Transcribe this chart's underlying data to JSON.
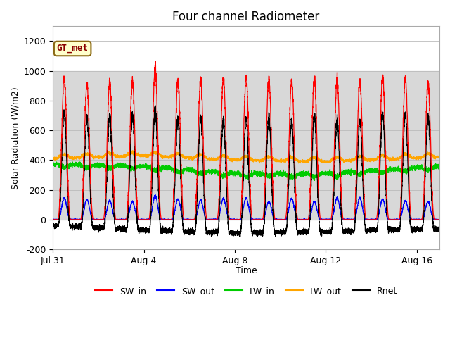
{
  "title": "Four channel Radiometer",
  "xlabel": "Time",
  "ylabel": "Solar Radiation (W/m2)",
  "ylim": [
    -200,
    1300
  ],
  "yticks": [
    -200,
    0,
    200,
    400,
    600,
    800,
    1000,
    1200
  ],
  "xtick_labels": [
    "Jul 31",
    "Aug 4",
    "Aug 8",
    "Aug 12",
    "Aug 16"
  ],
  "xtick_positions": [
    0,
    4,
    8,
    12,
    16
  ],
  "bg_gray_ylim": [
    0,
    1000
  ],
  "annotation_text": "GT_met",
  "colors": {
    "SW_in": "#ff0000",
    "SW_out": "#0000ff",
    "LW_in": "#00cc00",
    "LW_out": "#ffa500",
    "Rnet": "#000000"
  },
  "n_days": 17,
  "pts_per_day": 288,
  "figsize": [
    6.4,
    4.8
  ],
  "dpi": 100
}
